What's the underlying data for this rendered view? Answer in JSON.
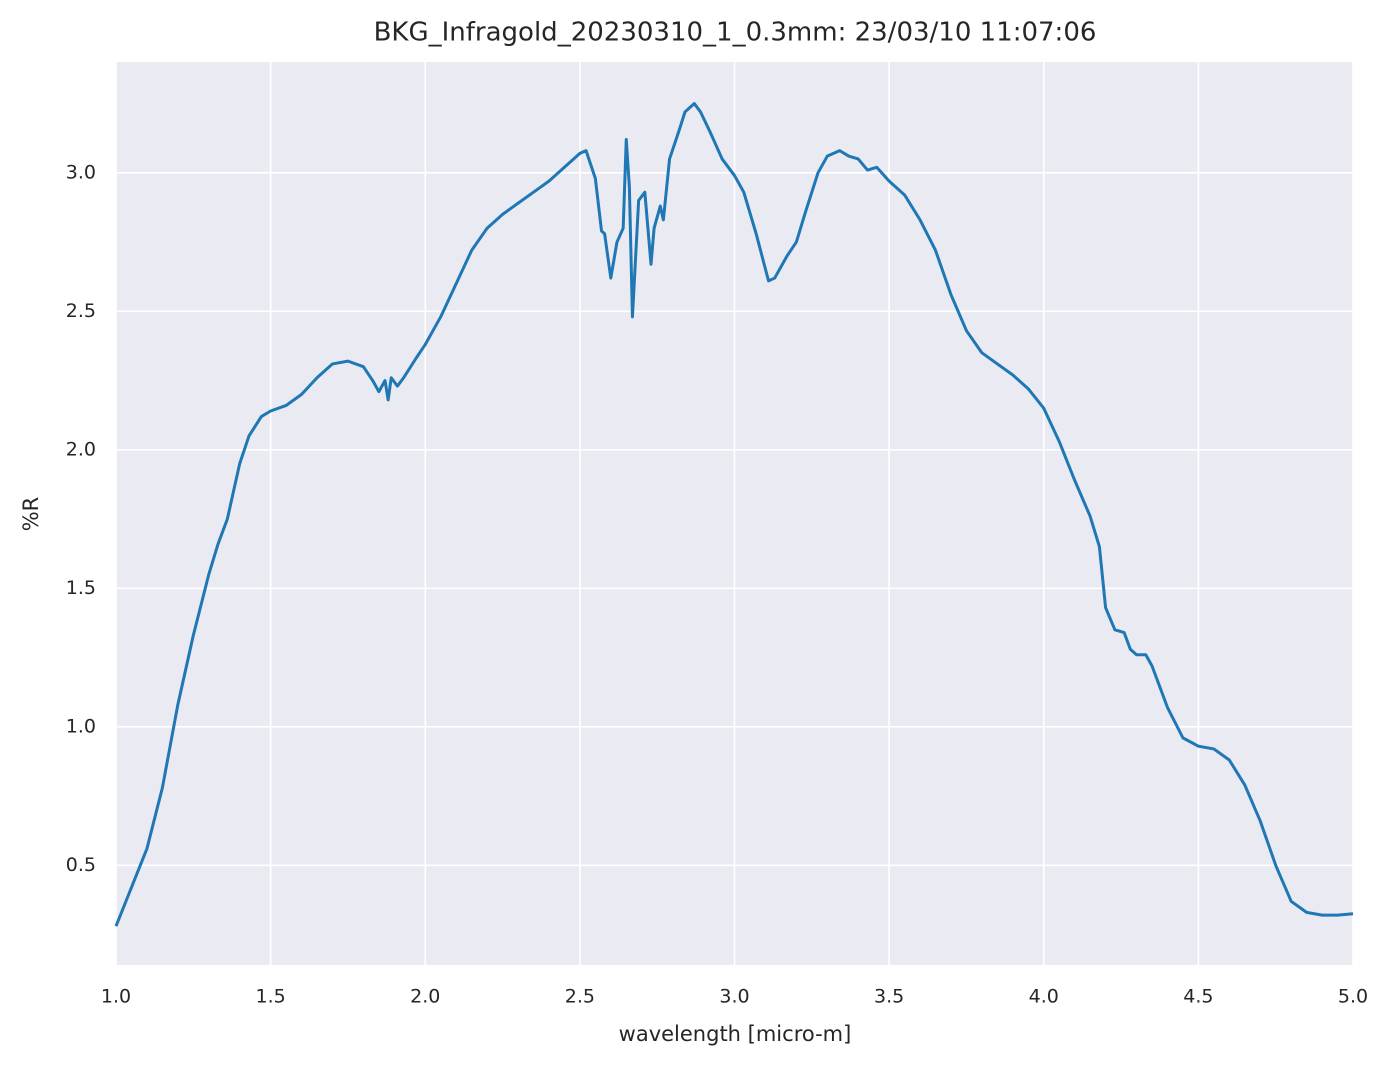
{
  "chart_data": {
    "type": "line",
    "title": "BKG_Infragold_20230310_1_0.3mm:  23/03/10 11:07:06",
    "xlabel": "wavelength [micro-m]",
    "ylabel": "%R",
    "x": [
      1.0,
      1.05,
      1.1,
      1.15,
      1.2,
      1.25,
      1.3,
      1.33,
      1.36,
      1.38,
      1.4,
      1.43,
      1.47,
      1.5,
      1.55,
      1.6,
      1.65,
      1.7,
      1.75,
      1.8,
      1.83,
      1.85,
      1.87,
      1.88,
      1.89,
      1.91,
      1.93,
      1.97,
      2.0,
      2.05,
      2.1,
      2.15,
      2.2,
      2.25,
      2.3,
      2.35,
      2.4,
      2.45,
      2.5,
      2.52,
      2.55,
      2.57,
      2.58,
      2.6,
      2.62,
      2.64,
      2.65,
      2.66,
      2.67,
      2.69,
      2.71,
      2.73,
      2.74,
      2.76,
      2.77,
      2.79,
      2.82,
      2.84,
      2.87,
      2.89,
      2.92,
      2.96,
      3.0,
      3.03,
      3.07,
      3.11,
      3.13,
      3.17,
      3.2,
      3.23,
      3.27,
      3.3,
      3.34,
      3.37,
      3.4,
      3.43,
      3.46,
      3.5,
      3.55,
      3.6,
      3.65,
      3.7,
      3.75,
      3.8,
      3.85,
      3.9,
      3.95,
      4.0,
      4.05,
      4.1,
      4.15,
      4.18,
      4.2,
      4.23,
      4.26,
      4.28,
      4.3,
      4.33,
      4.35,
      4.4,
      4.45,
      4.5,
      4.55,
      4.6,
      4.65,
      4.7,
      4.75,
      4.8,
      4.85,
      4.9,
      4.95,
      5.0
    ],
    "series": [
      {
        "color": "#1f77b4",
        "values": [
          0.28,
          0.42,
          0.56,
          0.78,
          1.08,
          1.33,
          1.55,
          1.66,
          1.75,
          1.85,
          1.95,
          2.05,
          2.12,
          2.14,
          2.16,
          2.2,
          2.26,
          2.31,
          2.32,
          2.3,
          2.25,
          2.21,
          2.25,
          2.18,
          2.26,
          2.23,
          2.26,
          2.33,
          2.38,
          2.48,
          2.6,
          2.72,
          2.8,
          2.85,
          2.89,
          2.93,
          2.97,
          3.02,
          3.07,
          3.08,
          2.98,
          2.79,
          2.78,
          2.62,
          2.75,
          2.8,
          3.12,
          2.95,
          2.48,
          2.9,
          2.93,
          2.67,
          2.8,
          2.88,
          2.83,
          3.05,
          3.15,
          3.22,
          3.25,
          3.22,
          3.15,
          3.05,
          2.99,
          2.93,
          2.78,
          2.61,
          2.62,
          2.7,
          2.75,
          2.86,
          3.0,
          3.06,
          3.08,
          3.06,
          3.05,
          3.01,
          3.02,
          2.97,
          2.92,
          2.83,
          2.72,
          2.56,
          2.43,
          2.35,
          2.31,
          2.27,
          2.22,
          2.15,
          2.03,
          1.89,
          1.76,
          1.65,
          1.43,
          1.35,
          1.34,
          1.28,
          1.26,
          1.26,
          1.22,
          1.07,
          0.96,
          0.93,
          0.92,
          0.88,
          0.79,
          0.66,
          0.5,
          0.37,
          0.33,
          0.32,
          0.32,
          0.325
        ]
      }
    ],
    "xlim": [
      1.0,
      5.0
    ],
    "xticks": [
      {
        "value": 1,
        "label": "1.0"
      },
      1.5,
      {
        "value": 2,
        "label": "2.0"
      },
      2.5,
      {
        "value": 3,
        "label": "3.0"
      },
      3.5,
      {
        "value": 4,
        "label": "4.0"
      },
      4.5,
      {
        "value": 5,
        "label": "5.0"
      }
    ],
    "ylim": [
      0.14,
      3.4
    ],
    "yticks": [
      0.5,
      {
        "value": 1,
        "label": "1.0"
      },
      1.5,
      {
        "value": 2,
        "label": "2.0"
      },
      2.5,
      {
        "value": 3,
        "label": "3.0"
      }
    ],
    "grid": true
  }
}
